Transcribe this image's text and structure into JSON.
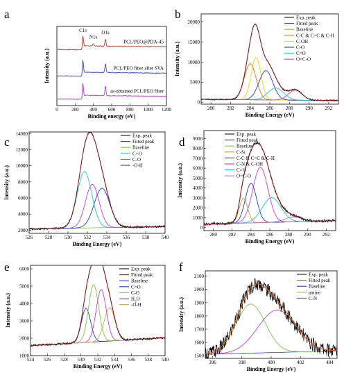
{
  "chart_data": [
    {
      "id": "a",
      "type": "line",
      "letter": "a",
      "xlabel": "Binding energy (eV)",
      "ylabel": "Intensity (a.u.)",
      "xlim": [
        0,
        1200
      ],
      "ylim": [
        0,
        3.6
      ],
      "xticks": [
        0,
        200,
        400,
        600,
        800,
        1000,
        1200
      ],
      "yticks": [],
      "peak_labels": [
        {
          "text": "C1s",
          "x": 285,
          "y": 3.35
        },
        {
          "text": "N1s",
          "x": 399,
          "y": 3.05
        },
        {
          "text": "O1s",
          "x": 532,
          "y": 3.25
        }
      ],
      "series": [
        {
          "name": "PCL/PEO@PDA-45",
          "color": "#c0392b",
          "offset": 2.55,
          "peaks": [
            [
              285,
              0.45,
              6
            ],
            [
              399,
              0.12,
              6
            ],
            [
              532,
              0.32,
              6
            ]
          ]
        },
        {
          "name": "PCL/PEO fiber after SVA",
          "color": "#3b46c9",
          "offset": 1.35,
          "peaks": [
            [
              285,
              0.55,
              6
            ],
            [
              532,
              0.42,
              6
            ]
          ]
        },
        {
          "name": "as-obtained PCL/PEO fiber",
          "color": "#b03fc9",
          "offset": 0.3,
          "peaks": [
            [
              285,
              0.55,
              6
            ],
            [
              532,
              0.45,
              6
            ]
          ]
        }
      ]
    },
    {
      "id": "b",
      "type": "line",
      "letter": "b",
      "xlabel": "Binding Energy (eV)",
      "ylabel": "Intensity (a.u.)",
      "xlim": [
        279,
        293
      ],
      "ylim": [
        -500,
        22000
      ],
      "xticks": [
        280,
        282,
        284,
        286,
        288,
        290,
        292
      ],
      "yticks": [
        0,
        5000,
        10000,
        15000,
        20000
      ],
      "baseline": [
        [
          279,
          700
        ],
        [
          293,
          400
        ]
      ],
      "components": [
        {
          "name": "C-C & C=C & C-H",
          "color": "#e07020",
          "center": 284.0,
          "height": 9000,
          "sigma": 0.6
        },
        {
          "name": "C-OH",
          "color": "#e8d800",
          "center": 284.6,
          "height": 10500,
          "sigma": 0.5
        },
        {
          "name": "C-O",
          "color": "#1f3ec8",
          "center": 285.6,
          "height": 7300,
          "sigma": 0.7
        },
        {
          "name": "C=O",
          "color": "#22c0d0",
          "center": 286.6,
          "height": 3000,
          "sigma": 0.8
        },
        {
          "name": "O=C-O",
          "color": "#c040c8",
          "center": 288.6,
          "height": 2500,
          "sigma": 0.7
        }
      ],
      "legend": [
        {
          "name": "Exp. peak",
          "color": "#111111"
        },
        {
          "name": "Fitted peak",
          "color": "#8b1a1a"
        },
        {
          "name": "Baseline",
          "color": "#7ac943"
        },
        {
          "name": "C-C & C=C & C-H",
          "color": "#e07020"
        },
        {
          "name": "C-OH",
          "color": "#e8d800"
        },
        {
          "name": "C-O",
          "color": "#1f3ec8"
        },
        {
          "name": "C=O",
          "color": "#22c0d0"
        },
        {
          "name": "O=C-O",
          "color": "#c040c8"
        }
      ]
    },
    {
      "id": "c",
      "type": "line",
      "letter": "c",
      "xlabel": "Binding Energy (eV)",
      "ylabel": "Intensity (a.u.)",
      "xlim": [
        526,
        540
      ],
      "ylim": [
        1600,
        14200
      ],
      "xticks": [
        526,
        528,
        530,
        532,
        534,
        536,
        538,
        540
      ],
      "yticks": [
        2000,
        4000,
        6000,
        8000,
        10000,
        12000,
        14000
      ],
      "baseline": [
        [
          526,
          2150
        ],
        [
          540,
          2450
        ]
      ],
      "components": [
        {
          "name": "C=O",
          "color": "#22c0d0",
          "center": 531.7,
          "height": 7000,
          "sigma": 0.75
        },
        {
          "name": "C-O",
          "color": "#c040c8",
          "center": 532.5,
          "height": 5400,
          "sigma": 0.7
        },
        {
          "name": "-O-H",
          "color": "#1f3ec8",
          "center": 533.5,
          "height": 4900,
          "sigma": 0.8
        }
      ],
      "legend": [
        {
          "name": "Exp. peak",
          "color": "#111111"
        },
        {
          "name": "Fitted peak",
          "color": "#8b1a1a"
        },
        {
          "name": "Baseline",
          "color": "#7ac943"
        },
        {
          "name": "C=O",
          "color": "#22c0d0"
        },
        {
          "name": "C-O",
          "color": "#c040c8"
        },
        {
          "name": "-O-H",
          "color": "#1f3ec8"
        }
      ]
    },
    {
      "id": "d",
      "type": "line",
      "letter": "d",
      "xlabel": "Binding Energy (eV)",
      "ylabel": "Intensity (a.u.)",
      "xlim": [
        279,
        293
      ],
      "ylim": [
        -300,
        9800
      ],
      "xticks": [
        280,
        282,
        284,
        286,
        288,
        290,
        292
      ],
      "yticks": [
        0,
        1000,
        2000,
        3000,
        4000,
        5000,
        6000,
        7000,
        8000,
        9000
      ],
      "baseline": [
        [
          279,
          350
        ],
        [
          293,
          700
        ]
      ],
      "components": [
        {
          "name": "C-Si",
          "color": "#b8a22a",
          "center": 283.2,
          "height": 2500,
          "sigma": 0.45
        },
        {
          "name": "C-C & C=C & C-H",
          "color": "#1f3ec8",
          "center": 284.0,
          "height": 4000,
          "sigma": 0.6
        },
        {
          "name": "C-N & C-OH",
          "color": "#c040c8",
          "center": 285.0,
          "height": 5600,
          "sigma": 0.8
        },
        {
          "name": "C=O",
          "color": "#22c0d0",
          "center": 286.2,
          "height": 2500,
          "sigma": 1.0
        },
        {
          "name": "O=C-O",
          "color": "#cc66cc",
          "center": 288.5,
          "height": 500,
          "sigma": 0.9
        }
      ],
      "legend": [
        {
          "name": "Exp. peak",
          "color": "#111111"
        },
        {
          "name": "Fitted peak",
          "color": "#8b1a1a"
        },
        {
          "name": "Baseline",
          "color": "#7ac943"
        },
        {
          "name": "C-Si",
          "color": "#b8a22a"
        },
        {
          "name": "C-C & C=C & C-H",
          "color": "#1f3ec8"
        },
        {
          "name": "C-N & C-OH",
          "color": "#c040c8"
        },
        {
          "name": "C=O",
          "color": "#22c0d0"
        },
        {
          "name": "O=C-O",
          "color": "#cc66cc"
        }
      ]
    },
    {
      "id": "e",
      "type": "line",
      "letter": "e",
      "xlabel": "Binding Energy (eV)",
      "ylabel": "Intensity (a.u.)",
      "xlim": [
        524,
        540
      ],
      "ylim": [
        1000,
        6200
      ],
      "xticks": [
        524,
        526,
        528,
        530,
        532,
        534,
        536,
        538,
        540
      ],
      "yticks": [
        1000,
        2000,
        3000,
        4000,
        5000,
        6000
      ],
      "baseline": [
        [
          525,
          1600
        ],
        [
          539,
          2000
        ]
      ],
      "components": [
        {
          "name": "C=O",
          "color": "#1f3ec8",
          "center": 530.6,
          "height": 1950,
          "sigma": 0.55
        },
        {
          "name": "C-O",
          "color": "#7ac943",
          "center": 531.5,
          "height": 3300,
          "sigma": 0.6
        },
        {
          "name": "H2O",
          "color": "#c040c8",
          "center": 532.4,
          "height": 3000,
          "sigma": 0.6
        },
        {
          "name": "-O-H",
          "color": "#d8a040",
          "center": 533.4,
          "height": 1900,
          "sigma": 0.65
        }
      ],
      "legend": [
        {
          "name": "Exp. peak",
          "color": "#111111"
        },
        {
          "name": "Fitted peak",
          "color": "#8b1a1a"
        },
        {
          "name": "Baseline",
          "color": "#1f3ec8"
        },
        {
          "name": "C=O",
          "color": "#1f3ec8"
        },
        {
          "name": "C-O",
          "color": "#7ac943"
        },
        {
          "name": "H2O",
          "color": "#c040c8"
        },
        {
          "name": "-O-H",
          "color": "#d8a040"
        }
      ]
    },
    {
      "id": "f",
      "type": "line",
      "letter": "f",
      "xlabel": "Binding Energy (eV)",
      "ylabel": "Intensity (a.u.)",
      "xlim": [
        395.5,
        404.5
      ],
      "ylim": [
        1480,
        2140
      ],
      "xticks": [
        396,
        398,
        400,
        402,
        404
      ],
      "yticks": [
        1500,
        1600,
        1700,
        1800,
        1900,
        2000,
        2100
      ],
      "baseline": [
        [
          396,
          1512
        ],
        [
          404,
          1535
        ]
      ],
      "components": [
        {
          "name": "amine",
          "color": "#7ac943",
          "center": 398.6,
          "height": 370,
          "sigma": 1.0
        },
        {
          "name": "C-N",
          "color": "#c040c8",
          "center": 400.4,
          "height": 320,
          "sigma": 1.3
        }
      ],
      "legend": [
        {
          "name": "Exp. peak",
          "color": "#111111"
        },
        {
          "name": "Fitted peak",
          "color": "#e06020"
        },
        {
          "name": "Baseline",
          "color": "#1f3ec8"
        },
        {
          "name": "amine",
          "color": "#7ac943"
        },
        {
          "name": "C-N",
          "color": "#c040c8"
        }
      ]
    }
  ]
}
